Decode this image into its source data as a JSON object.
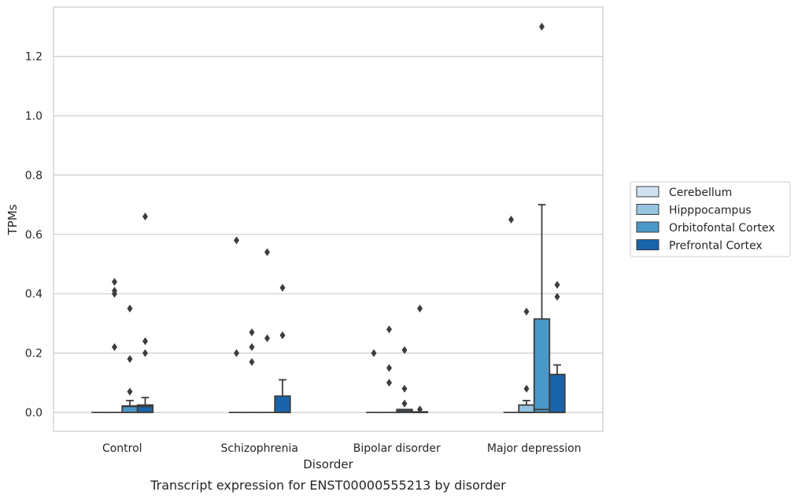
{
  "chart_data": {
    "type": "box",
    "title": "",
    "caption": "Transcript expression for ENST00000555213 by disorder",
    "xlabel": "Disorder",
    "ylabel": "TPMs",
    "ylim": [
      -0.065,
      1.375
    ],
    "yticks": [
      0.0,
      0.2,
      0.4,
      0.6,
      0.8,
      1.0,
      1.2
    ],
    "ytick_labels": [
      "0.0",
      "0.2",
      "0.4",
      "0.6",
      "0.8",
      "1.0",
      "1.2"
    ],
    "grid": "horizontal",
    "legend_position": "right",
    "categories": [
      "Control",
      "Schizophrenia",
      "Bipolar disorder",
      "Major depression"
    ],
    "series": [
      {
        "name": "Cerebellum",
        "color": "#d0e1f2",
        "boxes": [
          {
            "q1": 0,
            "median": 0,
            "q3": 0,
            "whisker_low": 0,
            "whisker_high": 0,
            "outliers": []
          },
          {
            "q1": 0,
            "median": 0,
            "q3": 0,
            "whisker_low": 0,
            "whisker_high": 0,
            "outliers": [
              0.58,
              0.2
            ]
          },
          {
            "q1": 0,
            "median": 0,
            "q3": 0,
            "whisker_low": 0,
            "whisker_high": 0,
            "outliers": [
              0.2
            ]
          },
          {
            "q1": 0,
            "median": 0,
            "q3": 0,
            "whisker_low": 0,
            "whisker_high": 0,
            "outliers": [
              0.65
            ]
          }
        ]
      },
      {
        "name": "Hipppocampus",
        "color": "#94c4df",
        "boxes": [
          {
            "q1": 0,
            "median": 0,
            "q3": 0,
            "whisker_low": 0,
            "whisker_high": 0,
            "outliers": [
              0.44,
              0.41,
              0.4,
              0.22
            ]
          },
          {
            "q1": 0,
            "median": 0,
            "q3": 0,
            "whisker_low": 0,
            "whisker_high": 0,
            "outliers": [
              0.27,
              0.22,
              0.17
            ]
          },
          {
            "q1": 0,
            "median": 0,
            "q3": 0,
            "whisker_low": 0,
            "whisker_high": 0,
            "outliers": [
              0.28,
              0.15,
              0.1
            ]
          },
          {
            "q1": 0,
            "median": 0,
            "q3": 0.025,
            "whisker_low": 0,
            "whisker_high": 0.04,
            "outliers": [
              0.34,
              0.08
            ]
          }
        ]
      },
      {
        "name": "Orbitofontal Cortex",
        "color": "#4a98c9",
        "boxes": [
          {
            "q1": 0,
            "median": 0.02,
            "q3": 0.022,
            "whisker_low": 0,
            "whisker_high": 0.04,
            "outliers": [
              0.35,
              0.18,
              0.07
            ]
          },
          {
            "q1": 0,
            "median": 0,
            "q3": 0,
            "whisker_low": 0,
            "whisker_high": 0,
            "outliers": [
              0.54,
              0.25
            ]
          },
          {
            "q1": 0,
            "median": 0.005,
            "q3": 0.01,
            "whisker_low": 0,
            "whisker_high": 0.01,
            "outliers": [
              0.21,
              0.08,
              0.03
            ]
          },
          {
            "q1": 0,
            "median": 0.01,
            "q3": 0.315,
            "whisker_low": 0,
            "whisker_high": 0.7,
            "outliers": [
              1.3
            ]
          }
        ]
      },
      {
        "name": "Prefrontal Cortex",
        "color": "#1764ab",
        "boxes": [
          {
            "q1": 0,
            "median": 0.02,
            "q3": 0.025,
            "whisker_low": 0,
            "whisker_high": 0.05,
            "outliers": [
              0.66,
              0.24,
              0.2
            ]
          },
          {
            "q1": 0,
            "median": 0,
            "q3": 0.055,
            "whisker_low": 0,
            "whisker_high": 0.11,
            "outliers": [
              0.42,
              0.26
            ]
          },
          {
            "q1": 0,
            "median": 0,
            "q3": 0.002,
            "whisker_low": 0,
            "whisker_high": 0.002,
            "outliers": [
              0.35,
              0.01
            ]
          },
          {
            "q1": 0,
            "median": 0,
            "q3": 0.128,
            "whisker_low": 0,
            "whisker_high": 0.16,
            "outliers": [
              0.43,
              0.39
            ]
          }
        ]
      }
    ]
  }
}
